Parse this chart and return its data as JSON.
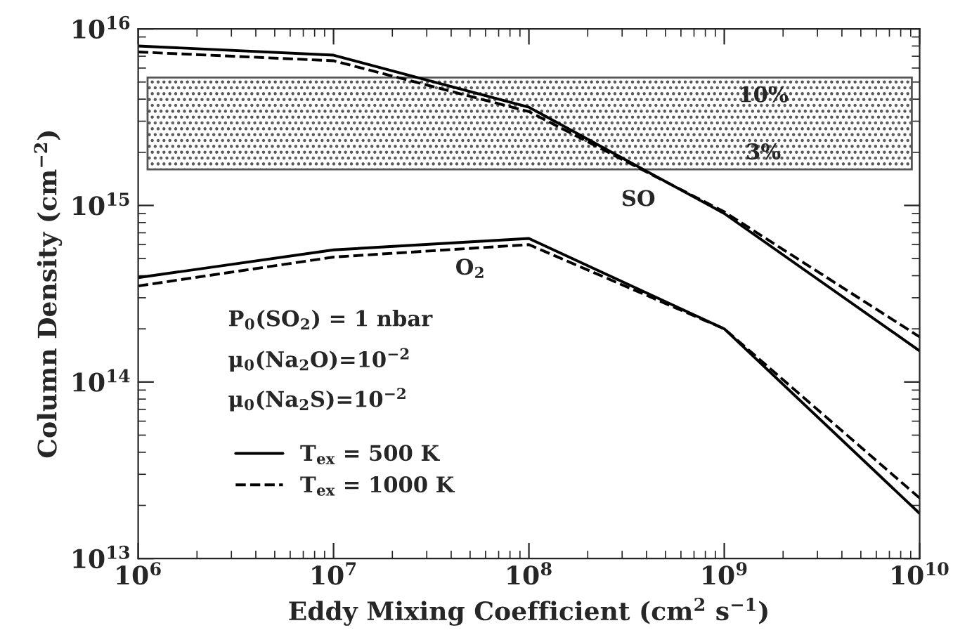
{
  "chart_data": {
    "type": "line",
    "xlabel": "Eddy Mixing Coefficient (cm$^{2}$ s$^{−1}$)",
    "ylabel": "Column Density (cm$^{−2}$)",
    "x": [
      1000000.0,
      10000000.0,
      100000000.0,
      1000000000.0,
      10000000000.0
    ],
    "series": [
      {
        "name": "T$_{ex}$ = 500 K",
        "color": "#000000",
        "line_style": "solid",
        "values": [
          8000000000000000.0,
          7100000000000000.0,
          3600000000000000.0,
          900000000000000.0,
          150000000000000.0
        ]
      },
      {
        "name": "T$_{ex}$ = 1000 K",
        "color": "#000000",
        "line_style": "dashed",
        "values": [
          7400000000000000.0,
          6600000000000000.0,
          3400000000000000.0,
          920000000000000.0,
          180000000000000.0
        ]
      },
      {
        "color": "#000000",
        "line_style": "solid",
        "values": [
          390000000000000.0,
          560000000000000.0,
          650000000000000.0,
          200000000000000.0,
          18000000000000.0
        ]
      },
      {
        "color": "#000000",
        "line_style": "dashed",
        "values": [
          350000000000000.0,
          510000000000000.0,
          600000000000000.0,
          200000000000000.0,
          22000000000000.0
        ]
      }
    ],
    "log": "xy",
    "xlim": [
      1000000.0,
      10000000000.0
    ],
    "ylim": [
      10000000000000.0,
      1e+16
    ],
    "xticks": [
      {
        "value": 1000000.0,
        "label": "10$^{6}$"
      },
      {
        "value": 10000000.0,
        "label": "10$^{7}$"
      },
      {
        "value": 100000000.0,
        "label": "10$^{8}$"
      },
      {
        "value": 1000000000.0,
        "label": "10$^{9}$"
      },
      {
        "value": 10000000000.0,
        "label": "10$^{10}$"
      }
    ],
    "yticks": [
      {
        "value": 10000000000000.0,
        "label": "10$^{13}$"
      },
      {
        "value": 100000000000000.0,
        "label": "10$^{14}$"
      },
      {
        "value": 1000000000000000.0,
        "label": "10$^{15}$"
      },
      {
        "value": 1e+16,
        "label": "10$^{16}$"
      }
    ],
    "bands": [
      {
        "axis": "y",
        "from": 1600000000000000.0,
        "to": 5300000000000000.0,
        "color": "#555555"
      }
    ],
    "annotations": [
      "10%",
      "3%",
      "SO",
      "O$_{2}$",
      "P$_{0}$(SO$_{2}$) = 1 nbar",
      "μ$_{0}$(Na$_{2}$O)=10$^{−2}$",
      "μ$_{0}$(Na$_{2}$S)=10$^{−2}$"
    ],
    "legend": "bottom left",
    "grid": false
  }
}
